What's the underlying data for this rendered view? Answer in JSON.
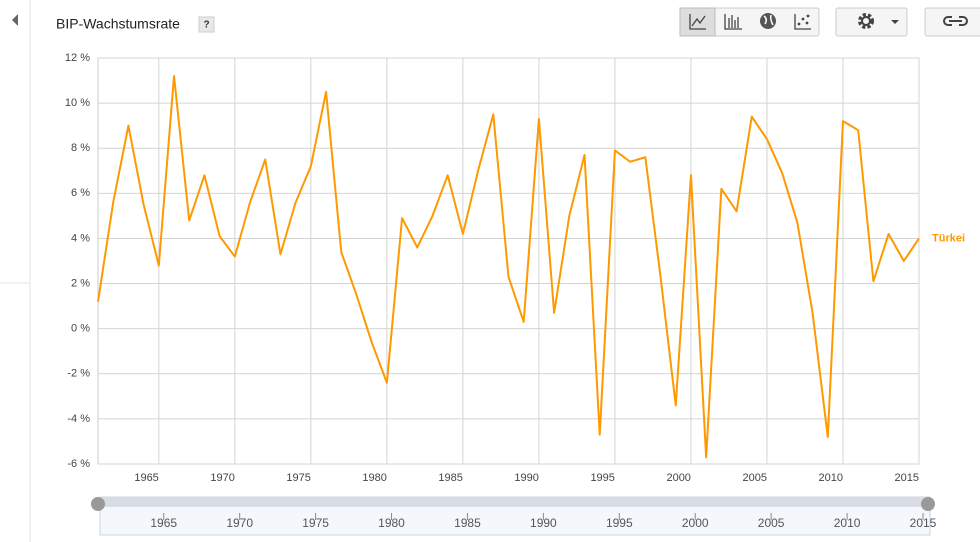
{
  "chart_data": {
    "type": "line",
    "title": "BIP-Wachstumsrate",
    "help_label": "?",
    "x": [
      1961,
      1962,
      1963,
      1964,
      1965,
      1966,
      1967,
      1968,
      1969,
      1970,
      1971,
      1972,
      1973,
      1974,
      1975,
      1976,
      1977,
      1978,
      1979,
      1980,
      1981,
      1982,
      1983,
      1984,
      1985,
      1986,
      1987,
      1988,
      1989,
      1990,
      1991,
      1992,
      1993,
      1994,
      1995,
      1996,
      1997,
      1998,
      1999,
      2000,
      2001,
      2002,
      2003,
      2004,
      2005,
      2006,
      2007,
      2008,
      2009,
      2010,
      2011,
      2012,
      2013,
      2014,
      2015
    ],
    "series": [
      {
        "name": "Türkei",
        "color": "#ff9900",
        "values": [
          1.2,
          5.6,
          9.0,
          5.5,
          2.8,
          11.2,
          4.8,
          6.8,
          4.1,
          3.2,
          5.6,
          7.5,
          3.3,
          5.6,
          7.2,
          10.5,
          3.4,
          1.5,
          -0.6,
          -2.4,
          4.9,
          3.6,
          5.0,
          6.8,
          4.2,
          7.0,
          9.5,
          2.3,
          0.3,
          9.3,
          0.7,
          5.0,
          7.7,
          -4.7,
          7.9,
          7.4,
          7.6,
          2.3,
          -3.4,
          6.8,
          -5.7,
          6.2,
          5.2,
          9.4,
          8.4,
          6.9,
          4.7,
          0.7,
          -4.8,
          9.2,
          8.8,
          2.1,
          4.2,
          3.0,
          4.0
        ]
      }
    ],
    "xlim": [
      1961,
      2015
    ],
    "xticks": [
      1965,
      1970,
      1975,
      1980,
      1985,
      1990,
      1995,
      2000,
      2005,
      2010,
      2015
    ],
    "ylim": [
      -6,
      12
    ],
    "yticks": [
      {
        "value": -6,
        "label": "-6 %"
      },
      {
        "value": -4,
        "label": "-4 %"
      },
      {
        "value": -2,
        "label": "-2 %"
      },
      {
        "value": 0,
        "label": "0 %"
      },
      {
        "value": 2,
        "label": "2 %"
      },
      {
        "value": 4,
        "label": "4 %"
      },
      {
        "value": 6,
        "label": "6 %"
      },
      {
        "value": 8,
        "label": "8 %"
      },
      {
        "value": 10,
        "label": "10 %"
      },
      {
        "value": 12,
        "label": "12 %"
      }
    ],
    "grid": true
  }
}
